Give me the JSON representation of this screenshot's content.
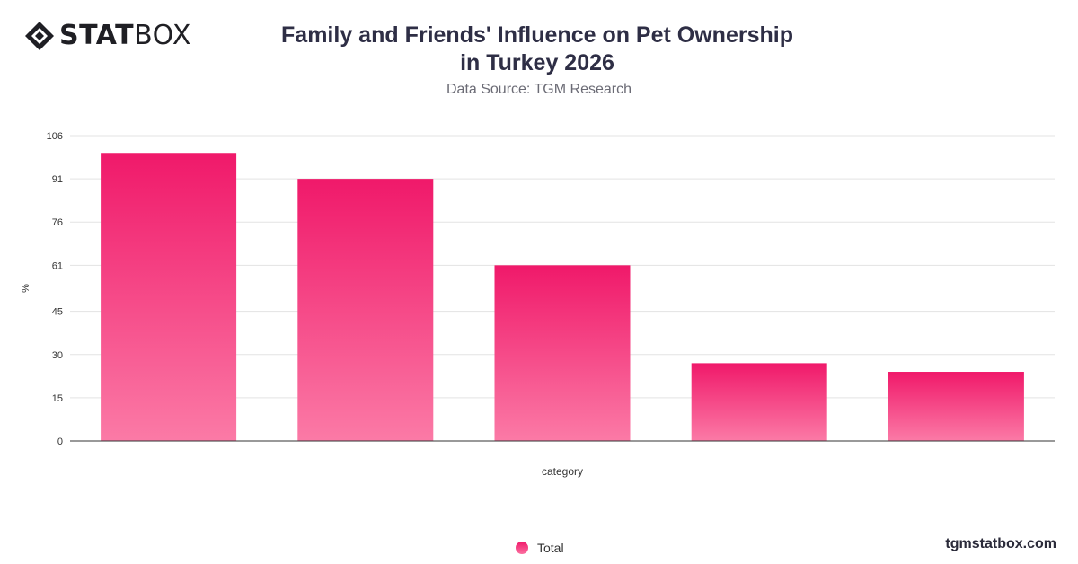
{
  "brand": {
    "bold": "STAT",
    "light": "BOX"
  },
  "title": "Family and Friends' Influence on Pet Ownership in Turkey 2026",
  "subtitle": "Data Source: TGM Research",
  "watermark": "tgmstatbox.com",
  "legend_label": "Total",
  "colors": {
    "bar_top": "#f0196a",
    "bar_bottom": "#fb7aa6",
    "grid": "#e3e3e3",
    "axis": "#333333"
  },
  "chart_data": {
    "type": "bar",
    "categories": [
      "",
      "",
      "",
      "",
      ""
    ],
    "series": [
      {
        "name": "Total",
        "values": [
          100,
          91,
          61,
          27,
          24
        ]
      }
    ],
    "xlabel": "category",
    "ylabel": "%",
    "yticks": [
      0,
      15,
      30,
      45,
      61,
      76,
      91,
      106
    ],
    "ylim": [
      0,
      106
    ],
    "grid": true,
    "legend": "bottom-center"
  }
}
